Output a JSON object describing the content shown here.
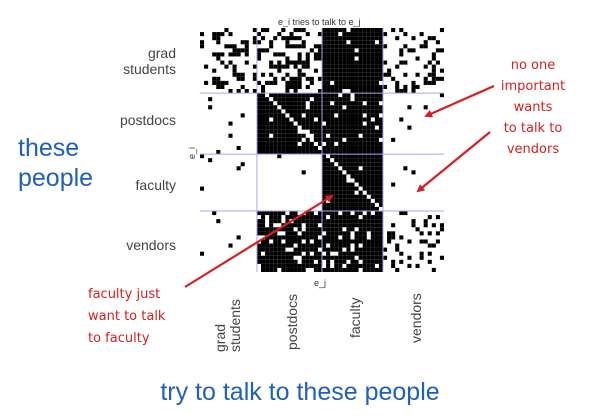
{
  "plot": {
    "title": "e_i tries to talk to e_j",
    "x_axis_label": "e_j",
    "y_axis_label": "e_i",
    "row_labels": [
      [
        "grad",
        "students"
      ],
      [
        "postdocs"
      ],
      [
        "faculty"
      ],
      [
        "vendors"
      ]
    ],
    "col_labels": [
      [
        "grad",
        "students"
      ],
      [
        "postdocs"
      ],
      [
        "faculty"
      ],
      [
        "vendors"
      ]
    ]
  },
  "matrix_density": {
    "groups": [
      "grad students",
      "postdocs",
      "faculty",
      "vendors"
    ],
    "rows": [
      [
        0.3,
        0.4,
        0.95,
        0.25
      ],
      [
        0.03,
        0.92,
        0.9,
        0.01
      ],
      [
        0.03,
        0.02,
        0.97,
        0.01
      ],
      [
        0.02,
        0.85,
        0.85,
        0.2
      ]
    ]
  },
  "annotations": {
    "left_big": [
      "these",
      "people"
    ],
    "bottom_big": "try to talk to these people",
    "right_red": [
      "no one",
      "important",
      "wants",
      "to talk to",
      "vendors"
    ],
    "left_red": [
      "faculty just",
      "want to talk",
      "to faculty"
    ]
  },
  "colors": {
    "blue_text": "#1f5fbf",
    "red_text": "#d81e1e",
    "grid_lines": "#a8a8f0",
    "cells": "#000000"
  }
}
